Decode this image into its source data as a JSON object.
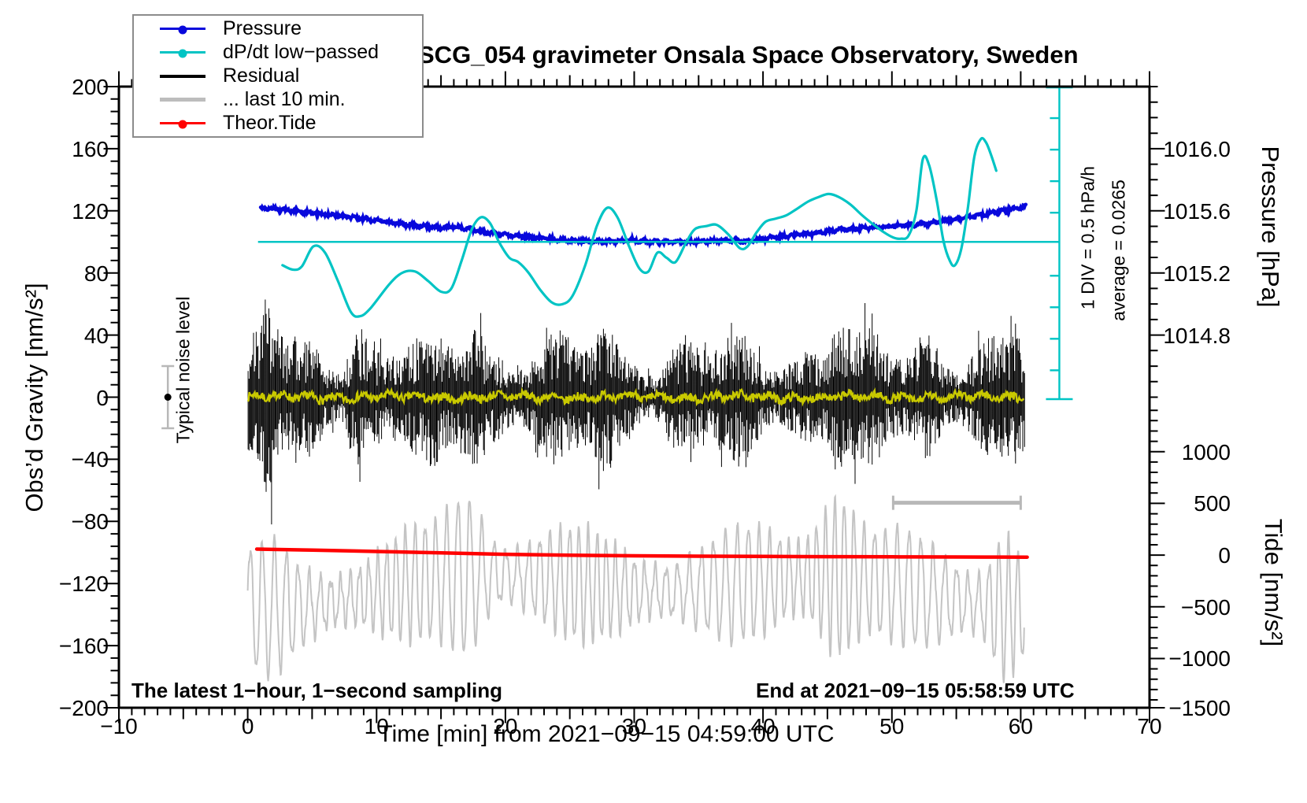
{
  "title": "SCG_054 gravimeter Onsala Space Observatory, Sweden",
  "legend": {
    "items": [
      {
        "label": "Pressure"
      },
      {
        "label": "dP/dt low−passed"
      },
      {
        "label": "Residual"
      },
      {
        "label": "... last 10 min."
      },
      {
        "label": "Theor.Tide"
      }
    ]
  },
  "annotations": {
    "noise_level": "Typical noise level",
    "div_scale": "1 DIV = 0.5 hPa/h",
    "average": "average = 0.0265",
    "sampling_note": "The latest 1−hour, 1−second sampling",
    "end_note": "End at 2021−09−15 05:58:59 UTC"
  },
  "colors": {
    "pressure": "#0808dc",
    "dpdt": "#00c4c4",
    "residual": "#000000",
    "residual_last10": "#c4c4c4",
    "theor_tide": "#ff0000",
    "lowpass_residual": "#c9c900",
    "marker_gray": "#b8b8b8",
    "frame": "#000000"
  },
  "chart_data": {
    "type": "line",
    "title": "SCG_054 gravimeter Onsala Space Observatory, Sweden",
    "xlabel": "Time [min] from 2021−09−15 04:59:00 UTC",
    "x_range": [
      -10,
      70
    ],
    "x_major": 10,
    "x_medium": 5,
    "x_minor": 1,
    "x_ticks": [
      {
        "v": -10,
        "label": "−10"
      },
      {
        "v": 0,
        "label": "0"
      },
      {
        "v": 10,
        "label": "10"
      },
      {
        "v": 20,
        "label": "20"
      },
      {
        "v": 30,
        "label": "30"
      },
      {
        "v": 40,
        "label": "40"
      },
      {
        "v": 50,
        "label": "50"
      },
      {
        "v": 60,
        "label": "60"
      },
      {
        "v": 70,
        "label": "70"
      }
    ],
    "left_axis": {
      "label": "Obs’d Gravity [nm/s²]",
      "range": [
        -200,
        200
      ],
      "major": 40,
      "minor": 8,
      "ticks": [
        {
          "v": 200,
          "label": "200"
        },
        {
          "v": 160,
          "label": "160"
        },
        {
          "v": 120,
          "label": "120"
        },
        {
          "v": 80,
          "label": "80"
        },
        {
          "v": 40,
          "label": "40"
        },
        {
          "v": 0,
          "label": "0"
        },
        {
          "v": -40,
          "label": "−40"
        },
        {
          "v": -80,
          "label": "−80"
        },
        {
          "v": -120,
          "label": "−120"
        },
        {
          "v": -160,
          "label": "−160"
        },
        {
          "v": -200,
          "label": "−200"
        }
      ]
    },
    "right_pressure_axis": {
      "label": "Pressure [hPa]",
      "hPa_per_gravity_unit": 0.01,
      "gravity_at_1015p4": 100,
      "minor_hPa": 0.1,
      "ticks": [
        {
          "hPa": 1016.0,
          "label": "1016.0"
        },
        {
          "hPa": 1015.6,
          "label": "1015.6"
        },
        {
          "hPa": 1015.2,
          "label": "1015.2"
        },
        {
          "hPa": 1014.8,
          "label": "1014.8"
        }
      ]
    },
    "right_tide_axis": {
      "label": "Tide [nm/s²]",
      "gravity_at_zero": -101.7,
      "gravity_per_tide_unit": 0.0666,
      "minor": 100,
      "ticks": [
        {
          "v": 1000,
          "label": "1000"
        },
        {
          "v": 500,
          "label": "500"
        },
        {
          "v": 0,
          "label": "0"
        },
        {
          "v": -500,
          "label": "−500"
        },
        {
          "v": -1000,
          "label": "−1000"
        },
        {
          "v": -1500,
          "label": "−1500"
        }
      ]
    },
    "series": {
      "pressure": {
        "name": "Pressure",
        "units": "hPa",
        "anchors": [
          [
            1.0,
            1015.62
          ],
          [
            3.0,
            1015.605
          ],
          [
            5.0,
            1015.585
          ],
          [
            7.0,
            1015.57
          ],
          [
            9.0,
            1015.55
          ],
          [
            11.0,
            1015.525
          ],
          [
            13.0,
            1015.505
          ],
          [
            15.0,
            1015.49
          ],
          [
            16.0,
            1015.5
          ],
          [
            18.0,
            1015.47
          ],
          [
            20.0,
            1015.445
          ],
          [
            22.0,
            1015.43
          ],
          [
            24.0,
            1015.415
          ],
          [
            26.0,
            1015.405
          ],
          [
            28.0,
            1015.402
          ],
          [
            30.0,
            1015.41
          ],
          [
            31.0,
            1015.4
          ],
          [
            33.0,
            1015.398
          ],
          [
            35.0,
            1015.403
          ],
          [
            37.0,
            1015.41
          ],
          [
            39.0,
            1015.405
          ],
          [
            40.0,
            1015.42
          ],
          [
            42.0,
            1015.44
          ],
          [
            44.0,
            1015.455
          ],
          [
            46.0,
            1015.48
          ],
          [
            48.0,
            1015.49
          ],
          [
            50.0,
            1015.5
          ],
          [
            52.0,
            1015.51
          ],
          [
            54.0,
            1015.535
          ],
          [
            56.0,
            1015.56
          ],
          [
            58.0,
            1015.59
          ],
          [
            59.5,
            1015.615
          ],
          [
            60.4,
            1015.628
          ]
        ]
      },
      "dp_dt": {
        "name": "dP/dt low−passed",
        "units": "hPa/h",
        "zero_line_gravity": 100,
        "div_value_hPa_per_h": 0.5,
        "average_hPa_per_h": 0.0265,
        "anchors": [
          [
            2.7,
            -0.37
          ],
          [
            3.5,
            -0.44
          ],
          [
            4.2,
            -0.39
          ],
          [
            5.1,
            -0.07
          ],
          [
            6.0,
            -0.17
          ],
          [
            7.0,
            -0.62
          ],
          [
            8.0,
            -1.11
          ],
          [
            8.7,
            -1.18
          ],
          [
            9.5,
            -1.06
          ],
          [
            11.0,
            -0.67
          ],
          [
            12.0,
            -0.49
          ],
          [
            13.0,
            -0.47
          ],
          [
            14.0,
            -0.62
          ],
          [
            15.0,
            -0.79
          ],
          [
            15.8,
            -0.74
          ],
          [
            16.6,
            -0.3
          ],
          [
            17.4,
            0.2
          ],
          [
            18.1,
            0.39
          ],
          [
            18.8,
            0.3
          ],
          [
            19.5,
            0.0
          ],
          [
            20.3,
            -0.25
          ],
          [
            21.0,
            -0.32
          ],
          [
            21.8,
            -0.49
          ],
          [
            22.7,
            -0.76
          ],
          [
            23.6,
            -0.96
          ],
          [
            24.4,
            -0.99
          ],
          [
            25.2,
            -0.86
          ],
          [
            26.2,
            -0.37
          ],
          [
            27.1,
            0.25
          ],
          [
            27.9,
            0.54
          ],
          [
            28.7,
            0.39
          ],
          [
            29.6,
            -0.07
          ],
          [
            30.4,
            -0.42
          ],
          [
            31.1,
            -0.47
          ],
          [
            31.8,
            -0.17
          ],
          [
            32.5,
            -0.25
          ],
          [
            33.2,
            -0.32
          ],
          [
            34.0,
            -0.02
          ],
          [
            34.7,
            0.2
          ],
          [
            35.6,
            0.25
          ],
          [
            36.4,
            0.27
          ],
          [
            37.3,
            0.12
          ],
          [
            38.2,
            -0.1
          ],
          [
            38.8,
            -0.07
          ],
          [
            39.5,
            0.15
          ],
          [
            40.2,
            0.32
          ],
          [
            41.0,
            0.37
          ],
          [
            41.8,
            0.42
          ],
          [
            42.6,
            0.52
          ],
          [
            43.5,
            0.64
          ],
          [
            44.3,
            0.71
          ],
          [
            45.1,
            0.76
          ],
          [
            45.9,
            0.71
          ],
          [
            46.8,
            0.59
          ],
          [
            47.7,
            0.42
          ],
          [
            48.6,
            0.27
          ],
          [
            49.4,
            0.15
          ],
          [
            50.1,
            0.07
          ],
          [
            50.7,
            0.05
          ],
          [
            51.3,
            0.1
          ],
          [
            51.9,
            0.49
          ],
          [
            52.4,
            1.31
          ],
          [
            52.9,
            1.21
          ],
          [
            53.5,
            0.64
          ],
          [
            54.0,
            0.02
          ],
          [
            54.5,
            -0.3
          ],
          [
            54.9,
            -0.37
          ],
          [
            55.4,
            -0.1
          ],
          [
            55.9,
            0.54
          ],
          [
            56.4,
            1.35
          ],
          [
            56.9,
            1.63
          ],
          [
            57.3,
            1.58
          ],
          [
            57.7,
            1.38
          ],
          [
            58.1,
            1.13
          ]
        ]
      },
      "theor_tide": {
        "name": "Theor.Tide",
        "units": "nm/s²",
        "anchors": [
          [
            0.7,
            58
          ],
          [
            5,
            48
          ],
          [
            10,
            35
          ],
          [
            15,
            22
          ],
          [
            20,
            8
          ],
          [
            25,
            -1
          ],
          [
            30,
            -7
          ],
          [
            35,
            -11
          ],
          [
            40,
            -13
          ],
          [
            45,
            -15
          ],
          [
            50,
            -17
          ],
          [
            55,
            -18.5
          ],
          [
            60.5,
            -20
          ]
        ]
      },
      "residual": {
        "name": "Residual",
        "units": "nm/s² (gravity scale)",
        "t_range": [
          0,
          60.35
        ],
        "center": 0,
        "typical_amplitude": [
          20,
          60
        ],
        "spike_max": 88,
        "bursts_at_min": [
          1.6,
          8.6,
          17.4,
          27.6,
          45.8,
          52.6,
          59.6
        ]
      },
      "lowpass_residual": {
        "name": "low-passed residual (yellow)",
        "units": "nm/s² (gravity scale)",
        "t_range": [
          0,
          60.3
        ],
        "center": 0,
        "amplitude": 3
      },
      "residual_last10": {
        "name": "... last 10 min.",
        "units": "nm/s² (gravity scale)",
        "t_range": [
          0,
          60.3
        ],
        "period_min": 0.85,
        "center_gravity": -125,
        "amplitude_range": [
          15,
          72
        ],
        "bursts_at_min": [
          17,
          45.7,
          58.7
        ],
        "span_marker": {
          "t_from": 50.1,
          "t_to": 60,
          "gravity": -68
        }
      },
      "noise_marker": {
        "name": "Typical noise level",
        "t": -6.2,
        "gravity": 0,
        "bar_gravity_range": [
          -20,
          20
        ]
      },
      "cyan_reference": {
        "hline_gravity": 100,
        "hline_t_range": [
          0.8,
          63.0
        ],
        "vbar_t": 63.0,
        "vbar_gravity_range": [
          100.5,
          200
        ],
        "div_gravity_units": 20.3
      }
    }
  }
}
